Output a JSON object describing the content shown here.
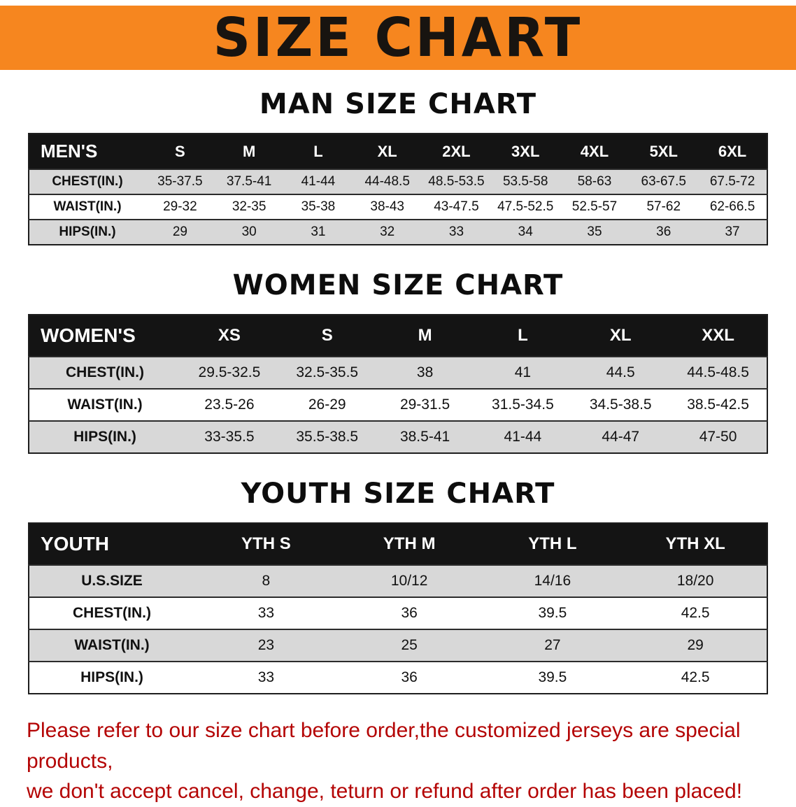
{
  "banner": {
    "title": "SIZE CHART",
    "bg_color": "#F6861F",
    "text_color": "#181410"
  },
  "sections": [
    {
      "heading": "MAN SIZE CHART",
      "table": {
        "header": [
          "MEN'S",
          "S",
          "M",
          "L",
          "XL",
          "2XL",
          "3XL",
          "4XL",
          "5XL",
          "6XL"
        ],
        "rows": [
          {
            "label": "CHEST(IN.)",
            "values": [
              "35-37.5",
              "37.5-41",
              "41-44",
              "44-48.5",
              "48.5-53.5",
              "53.5-58",
              "58-63",
              "63-67.5",
              "67.5-72"
            ]
          },
          {
            "label": "WAIST(IN.)",
            "values": [
              "29-32",
              "32-35",
              "35-38",
              "38-43",
              "43-47.5",
              "47.5-52.5",
              "52.5-57",
              "57-62",
              "62-66.5"
            ]
          },
          {
            "label": "HIPS(IN.)",
            "values": [
              "29",
              "30",
              "31",
              "32",
              "33",
              "34",
              "35",
              "36",
              "37"
            ]
          }
        ]
      }
    },
    {
      "heading": "WOMEN SIZE CHART",
      "table": {
        "header": [
          "WOMEN'S",
          "XS",
          "S",
          "M",
          "L",
          "XL",
          "XXL"
        ],
        "rows": [
          {
            "label": "CHEST(IN.)",
            "values": [
              "29.5-32.5",
              "32.5-35.5",
              "38",
              "41",
              "44.5",
              "44.5-48.5"
            ]
          },
          {
            "label": "WAIST(IN.)",
            "values": [
              "23.5-26",
              "26-29",
              "29-31.5",
              "31.5-34.5",
              "34.5-38.5",
              "38.5-42.5"
            ]
          },
          {
            "label": "HIPS(IN.)",
            "values": [
              "33-35.5",
              "35.5-38.5",
              "38.5-41",
              "41-44",
              "44-47",
              "47-50"
            ]
          }
        ]
      }
    },
    {
      "heading": "YOUTH SIZE CHART",
      "table": {
        "header": [
          "YOUTH",
          "YTH S",
          "YTH M",
          "YTH L",
          "YTH XL"
        ],
        "rows": [
          {
            "label": "U.S.SIZE",
            "values": [
              "8",
              "10/12",
              "14/16",
              "18/20"
            ]
          },
          {
            "label": "CHEST(IN.)",
            "values": [
              "33",
              "36",
              "39.5",
              "42.5"
            ]
          },
          {
            "label": "WAIST(IN.)",
            "values": [
              "23",
              "25",
              "27",
              "29"
            ]
          },
          {
            "label": "HIPS(IN.)",
            "values": [
              "33",
              "36",
              "39.5",
              "42.5"
            ]
          }
        ]
      }
    }
  ],
  "footer": {
    "line1": "Please refer to our size chart before order,the customized jerseys are special products,",
    "line2": "we don't accept cancel, change, teturn or refund after order has been placed!",
    "text_color": "#b40404"
  }
}
